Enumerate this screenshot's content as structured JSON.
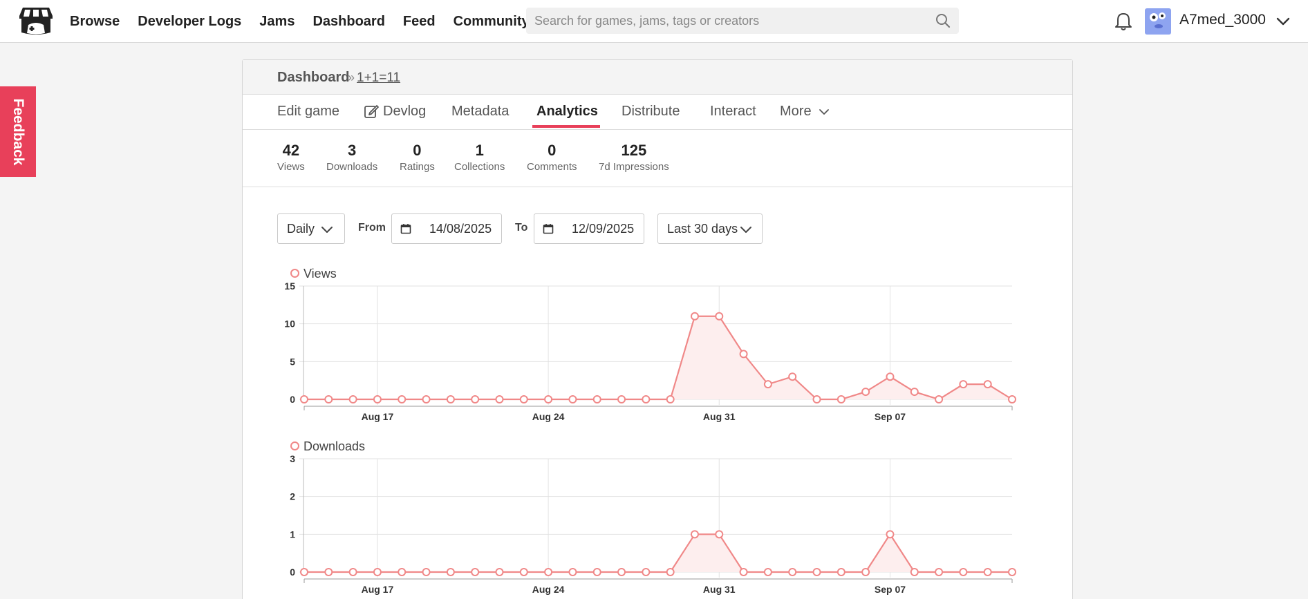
{
  "header": {
    "nav": [
      "Browse",
      "Developer Logs",
      "Jams",
      "Dashboard",
      "Feed",
      "Community"
    ],
    "search_placeholder": "Search for games, jams, tags or creators",
    "username": "A7med_3000"
  },
  "feedback_label": "Feedback",
  "breadcrumb": {
    "root": "Dashboard",
    "separator": "»",
    "project": "1+1=11"
  },
  "tabs": [
    "Edit game",
    "Devlog",
    "Metadata",
    "Analytics",
    "Distribute",
    "Interact",
    "More"
  ],
  "active_tab": "Analytics",
  "stats": [
    {
      "value": "42",
      "label": "Views"
    },
    {
      "value": "3",
      "label": "Downloads"
    },
    {
      "value": "0",
      "label": "Ratings"
    },
    {
      "value": "1",
      "label": "Collections"
    },
    {
      "value": "0",
      "label": "Comments"
    },
    {
      "value": "125",
      "label": "7d Impressions"
    }
  ],
  "controls": {
    "interval": "Daily",
    "from_label": "From",
    "from_date": "14/08/2025",
    "to_label": "To",
    "to_date": "12/09/2025",
    "range": "Last 30 days"
  },
  "colors": {
    "accent": "#e8405a",
    "series": "#f08888",
    "area": "#fdeeee"
  },
  "chart_data": [
    {
      "type": "area",
      "title": "Views",
      "x": [
        "Aug 14",
        "Aug 15",
        "Aug 16",
        "Aug 17",
        "Aug 18",
        "Aug 19",
        "Aug 20",
        "Aug 21",
        "Aug 22",
        "Aug 23",
        "Aug 24",
        "Aug 25",
        "Aug 26",
        "Aug 27",
        "Aug 28",
        "Aug 29",
        "Aug 30",
        "Aug 31",
        "Sep 01",
        "Sep 02",
        "Sep 03",
        "Sep 04",
        "Sep 05",
        "Sep 06",
        "Sep 07",
        "Sep 08",
        "Sep 09",
        "Sep 10",
        "Sep 11",
        "Sep 12"
      ],
      "series": [
        {
          "name": "Views",
          "values": [
            0,
            0,
            0,
            0,
            0,
            0,
            0,
            0,
            0,
            0,
            0,
            0,
            0,
            0,
            0,
            0,
            11,
            11,
            6,
            2,
            3,
            0,
            0,
            1,
            3,
            1,
            0,
            2,
            2,
            0
          ]
        }
      ],
      "ylim": [
        0,
        15
      ],
      "yticks": [
        "0",
        "5",
        "10",
        "15"
      ],
      "xticks": [
        "Aug 17",
        "Aug 24",
        "Aug 31",
        "Sep 07"
      ],
      "grid": true,
      "legend": "top-left"
    },
    {
      "type": "area",
      "title": "Downloads",
      "x": [
        "Aug 14",
        "Aug 15",
        "Aug 16",
        "Aug 17",
        "Aug 18",
        "Aug 19",
        "Aug 20",
        "Aug 21",
        "Aug 22",
        "Aug 23",
        "Aug 24",
        "Aug 25",
        "Aug 26",
        "Aug 27",
        "Aug 28",
        "Aug 29",
        "Aug 30",
        "Aug 31",
        "Sep 01",
        "Sep 02",
        "Sep 03",
        "Sep 04",
        "Sep 05",
        "Sep 06",
        "Sep 07",
        "Sep 08",
        "Sep 09",
        "Sep 10",
        "Sep 11",
        "Sep 12"
      ],
      "series": [
        {
          "name": "Downloads",
          "values": [
            0,
            0,
            0,
            0,
            0,
            0,
            0,
            0,
            0,
            0,
            0,
            0,
            0,
            0,
            0,
            0,
            1,
            1,
            0,
            0,
            0,
            0,
            0,
            0,
            1,
            0,
            0,
            0,
            0,
            0
          ]
        }
      ],
      "ylim": [
        0,
        3
      ],
      "yticks": [
        "0",
        "1",
        "2",
        "3"
      ],
      "xticks": [
        "Aug 17",
        "Aug 24",
        "Aug 31",
        "Sep 07"
      ],
      "grid": true,
      "legend": "top-left"
    }
  ]
}
